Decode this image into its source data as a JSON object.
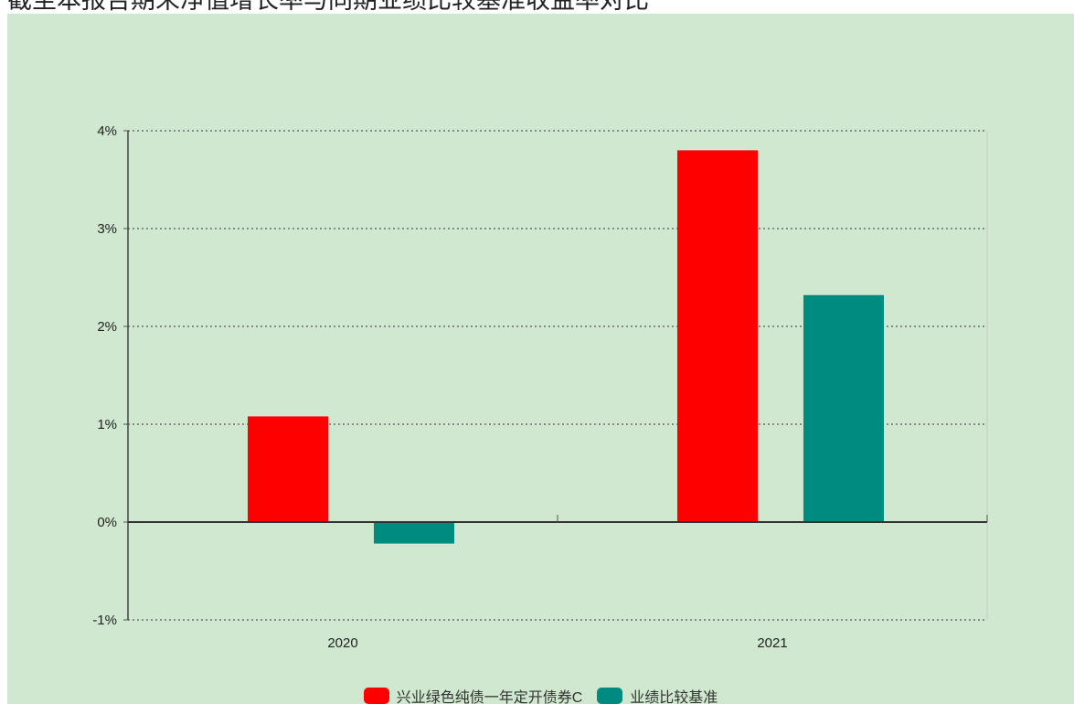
{
  "header": {
    "cut_text": "截至本报告期末净值增长率与同期业绩比较基准收益率对比"
  },
  "chart_data": {
    "type": "bar",
    "categories": [
      "2020",
      "2021"
    ],
    "series": [
      {
        "name": "兴业绿色纯债一年定开债券C",
        "values": [
          1.08,
          3.8
        ],
        "color": "#ff0000"
      },
      {
        "name": "业绩比较基准",
        "values": [
          -0.22,
          2.32
        ],
        "color": "#008b80"
      }
    ],
    "ylim": [
      -1,
      4
    ],
    "yticks": [
      -1,
      0,
      1,
      2,
      3,
      4
    ],
    "tick_suffix": "%",
    "grid": true,
    "legend_position": "bottom-center",
    "background": "#cfe8cf"
  }
}
